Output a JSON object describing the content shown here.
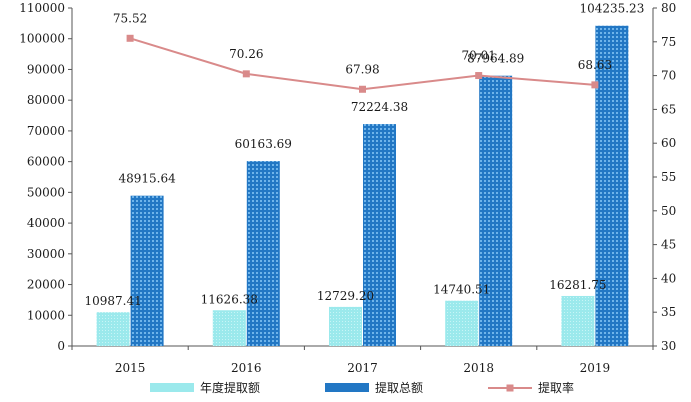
{
  "chart_data": {
    "type": "bar",
    "categories": [
      "2015",
      "2016",
      "2017",
      "2018",
      "2019"
    ],
    "series": [
      {
        "name": "年度提取额",
        "type": "bar",
        "axis": "left",
        "color": "#9be9ec",
        "values": [
          10987.41,
          11626.38,
          12729.2,
          14740.51,
          16281.75
        ],
        "labels": [
          "10987.41",
          "11626.38",
          "12729.20",
          "14740.51",
          "16281.75"
        ]
      },
      {
        "name": "提取总额",
        "type": "bar",
        "axis": "left",
        "color": "#2277c4",
        "values": [
          48915.64,
          60163.69,
          72224.38,
          87964.89,
          104235.23
        ],
        "labels": [
          "48915.64",
          "60163.69",
          "72224.38",
          "87964.89",
          "104235.23"
        ]
      },
      {
        "name": "提取率",
        "type": "line",
        "axis": "right",
        "color": "#d98a8a",
        "values": [
          75.52,
          70.26,
          67.98,
          70.01,
          68.63
        ],
        "labels": [
          "75.52",
          "70.26",
          "67.98",
          "70.01",
          "68.63"
        ]
      }
    ],
    "y_left": {
      "ylim": [
        0,
        110000
      ],
      "ticks": [
        0,
        10000,
        20000,
        30000,
        40000,
        50000,
        60000,
        70000,
        80000,
        90000,
        100000,
        110000
      ]
    },
    "y_right": {
      "ylim": [
        30,
        80
      ],
      "ticks": [
        30,
        35,
        40,
        45,
        50,
        55,
        60,
        65,
        70,
        75,
        80
      ]
    },
    "legend": "bottom",
    "grid": false
  }
}
